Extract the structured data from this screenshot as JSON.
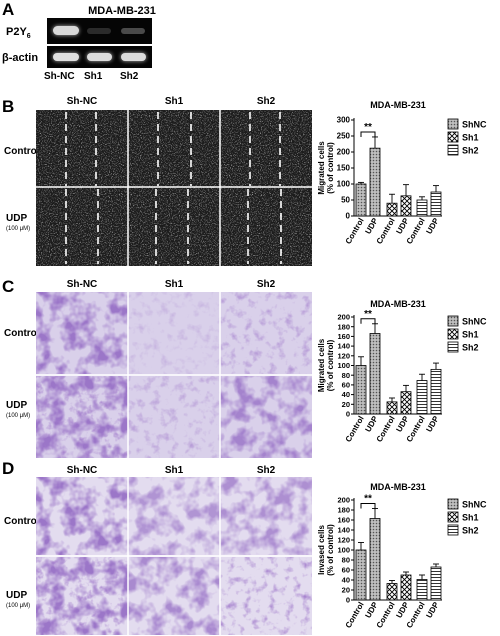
{
  "panel_a": {
    "letter": "A",
    "cell_line": "MDA-MB-231",
    "gene_prefix": "P2Y",
    "gene_sub": "6",
    "control_gene": "β-actin",
    "lanes": [
      "Sh-NC",
      "Sh1",
      "Sh2"
    ]
  },
  "panel_b": {
    "letter": "B",
    "columns": [
      "Sh-NC",
      "Sh1",
      "Sh2"
    ],
    "rows": [
      {
        "label": "Control",
        "sub": ""
      },
      {
        "label": "UDP",
        "sub": "(100 μM)"
      }
    ]
  },
  "panel_c": {
    "letter": "C",
    "columns": [
      "Sh-NC",
      "Sh1",
      "Sh2"
    ],
    "rows": [
      {
        "label": "Control",
        "sub": ""
      },
      {
        "label": "UDP",
        "sub": "(100 μM)"
      }
    ]
  },
  "panel_d": {
    "letter": "D",
    "columns": [
      "Sh-NC",
      "Sh1",
      "Sh2"
    ],
    "rows": [
      {
        "label": "Control",
        "sub": ""
      },
      {
        "label": "UDP",
        "sub": "(100 μM)"
      }
    ]
  },
  "colors": {
    "wound_bg": "#1c1c1c",
    "stain_purple": "#6a3fa0",
    "stain_light": "#d9d0ea"
  },
  "chart_data": [
    {
      "type": "bar",
      "title": "MDA-MB-231",
      "ylabel": "Migrated cells (% of control)",
      "ylim": [
        0,
        300
      ],
      "yticks": [
        0,
        50,
        100,
        150,
        200,
        250,
        300
      ],
      "categories": [
        "Control",
        "UDP",
        "Control",
        "UDP",
        "Control",
        "UDP"
      ],
      "groups": [
        "ShNC",
        "Sh1",
        "Sh2"
      ],
      "values": [
        100,
        212,
        40,
        63,
        50,
        75
      ],
      "errors": [
        5,
        35,
        28,
        35,
        10,
        20
      ],
      "significance": "**",
      "legend": [
        "ShNC",
        "Sh1",
        "Sh2"
      ]
    },
    {
      "type": "bar",
      "title": "MDA-MB-231",
      "ylabel": "Migrated cells (% of control)",
      "ylim": [
        0,
        200
      ],
      "yticks": [
        0,
        20,
        40,
        60,
        80,
        100,
        120,
        140,
        160,
        180,
        200
      ],
      "categories": [
        "Control",
        "UDP",
        "Control",
        "UDP",
        "Control",
        "UDP"
      ],
      "groups": [
        "ShNC",
        "Sh1",
        "Sh2"
      ],
      "values": [
        100,
        166,
        25,
        46,
        69,
        92
      ],
      "errors": [
        18,
        20,
        8,
        13,
        13,
        13
      ],
      "significance": "**",
      "legend": [
        "ShNC",
        "Sh1",
        "Sh2"
      ]
    },
    {
      "type": "bar",
      "title": "MDA-MB-231",
      "ylabel": "Invased cells (% of control)",
      "ylim": [
        0,
        200
      ],
      "yticks": [
        0,
        20,
        40,
        60,
        80,
        100,
        120,
        140,
        160,
        180,
        200
      ],
      "categories": [
        "Control",
        "UDP",
        "Control",
        "UDP",
        "Control",
        "UDP"
      ],
      "groups": [
        "ShNC",
        "Sh1",
        "Sh2"
      ],
      "values": [
        100,
        163,
        33,
        50,
        41,
        66
      ],
      "errors": [
        15,
        20,
        6,
        6,
        9,
        6
      ],
      "significance": "**",
      "legend": [
        "ShNC",
        "Sh1",
        "Sh2"
      ]
    }
  ]
}
